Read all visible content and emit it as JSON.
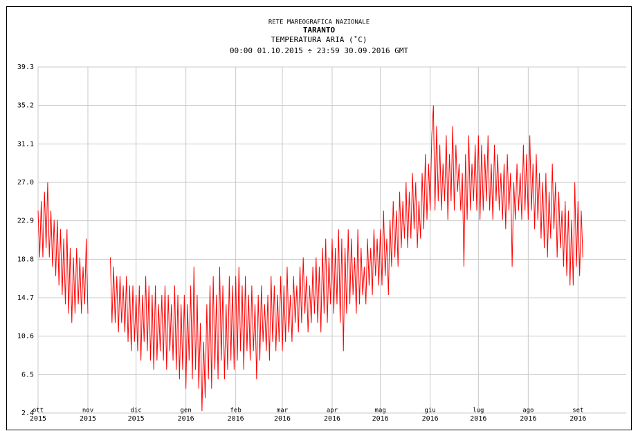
{
  "chart_data": {
    "type": "line",
    "header": "RETE MAREOGRAFICA NAZIONALE",
    "title": "TARANTO",
    "subtitle": "TEMPERATURA ARIA (˚C)",
    "period": "00:00 01.10.2015 ÷ 23:59 30.09.2016 GMT",
    "xlim": [
      0,
      366
    ],
    "xticks": [
      {
        "value": 0,
        "label": "ott",
        "year": "2015"
      },
      {
        "value": 31,
        "label": "nov",
        "year": "2015"
      },
      {
        "value": 61,
        "label": "dic",
        "year": "2015"
      },
      {
        "value": 92,
        "label": "gen",
        "year": "2016"
      },
      {
        "value": 123,
        "label": "feb",
        "year": "2016"
      },
      {
        "value": 152,
        "label": "mar",
        "year": "2016"
      },
      {
        "value": 183,
        "label": "apr",
        "year": "2016"
      },
      {
        "value": 213,
        "label": "mag",
        "year": "2016"
      },
      {
        "value": 244,
        "label": "giu",
        "year": "2016"
      },
      {
        "value": 274,
        "label": "lug",
        "year": "2016"
      },
      {
        "value": 305,
        "label": "ago",
        "year": "2016"
      },
      {
        "value": 336,
        "label": "set",
        "year": "2016"
      }
    ],
    "ylim": [
      2.4,
      39.3
    ],
    "yticks": [
      2.4,
      6.5,
      10.6,
      14.7,
      18.8,
      22.9,
      {
        "value": 27,
        "label": "27.0"
      },
      31.1,
      35.2,
      39.3
    ],
    "grid": true,
    "x": [
      0,
      1,
      2,
      3,
      4,
      5,
      6,
      7,
      8,
      9,
      10,
      11,
      12,
      13,
      14,
      15,
      16,
      17,
      18,
      19,
      20,
      21,
      22,
      23,
      24,
      25,
      26,
      27,
      28,
      29,
      30,
      31,
      32,
      33,
      34,
      35,
      36,
      37,
      38,
      39,
      40,
      41,
      42,
      43,
      44,
      45,
      46,
      47,
      48,
      49,
      50,
      51,
      52,
      53,
      54,
      55,
      56,
      57,
      58,
      59,
      60,
      61,
      62,
      63,
      64,
      65,
      66,
      67,
      68,
      69,
      70,
      71,
      72,
      73,
      74,
      75,
      76,
      77,
      78,
      79,
      80,
      81,
      82,
      83,
      84,
      85,
      86,
      87,
      88,
      89,
      90,
      91,
      92,
      93,
      94,
      95,
      96,
      97,
      98,
      99,
      100,
      101,
      102,
      103,
      104,
      105,
      106,
      107,
      108,
      109,
      110,
      111,
      112,
      113,
      114,
      115,
      116,
      117,
      118,
      119,
      120,
      121,
      122,
      123,
      124,
      125,
      126,
      127,
      128,
      129,
      130,
      131,
      132,
      133,
      134,
      135,
      136,
      137,
      138,
      139,
      140,
      141,
      142,
      143,
      144,
      145,
      146,
      147,
      148,
      149,
      150,
      151,
      152,
      153,
      154,
      155,
      156,
      157,
      158,
      159,
      160,
      161,
      162,
      163,
      164,
      165,
      166,
      167,
      168,
      169,
      170,
      171,
      172,
      173,
      174,
      175,
      176,
      177,
      178,
      179,
      180,
      181,
      182,
      183,
      184,
      185,
      186,
      187,
      188,
      189,
      190,
      191,
      192,
      193,
      194,
      195,
      196,
      197,
      198,
      199,
      200,
      201,
      202,
      203,
      204,
      205,
      206,
      207,
      208,
      209,
      210,
      211,
      212,
      213,
      214,
      215,
      216,
      217,
      218,
      219,
      220,
      221,
      222,
      223,
      224,
      225,
      226,
      227,
      228,
      229,
      230,
      231,
      232,
      233,
      234,
      235,
      236,
      237,
      238,
      239,
      240,
      241,
      242,
      243,
      244,
      245,
      246,
      247,
      248,
      249,
      250,
      251,
      252,
      253,
      254,
      255,
      256,
      257,
      258,
      259,
      260,
      261,
      262,
      263,
      264,
      265,
      266,
      267,
      268,
      269,
      270,
      271,
      272,
      273,
      274,
      275,
      276,
      277,
      278,
      279,
      280,
      281,
      282,
      283,
      284,
      285,
      286,
      287,
      288,
      289,
      290,
      291,
      292,
      293,
      294,
      295,
      296,
      297,
      298,
      299,
      300,
      301,
      302,
      303,
      304,
      305,
      306,
      307,
      308,
      309,
      310,
      311,
      312,
      313,
      314,
      315,
      316,
      317,
      318,
      319,
      320,
      321,
      322,
      323,
      324,
      325,
      326,
      327,
      328,
      329,
      330,
      331,
      332,
      333,
      334,
      335,
      336,
      337,
      338,
      339
    ],
    "series": [
      {
        "color": "#ff0000",
        "values": [
          24,
          19,
          25,
          19,
          26,
          20,
          27,
          19,
          24,
          18,
          23,
          17,
          23,
          16,
          22,
          15,
          21,
          14,
          22,
          13,
          20,
          12,
          19,
          13,
          20,
          14,
          19,
          13,
          18,
          14,
          21,
          13,
          null,
          null,
          null,
          null,
          null,
          null,
          null,
          null,
          null,
          null,
          null,
          null,
          null,
          19,
          12,
          18,
          12,
          17,
          11,
          17,
          12,
          16,
          11,
          17,
          10,
          16,
          9,
          16,
          10,
          15,
          9,
          16,
          8,
          15,
          10,
          17,
          9,
          16,
          8,
          15,
          7,
          16,
          8,
          14,
          9,
          15,
          8,
          16,
          7,
          15,
          9,
          14,
          8,
          16,
          7,
          15,
          6,
          14,
          7,
          15,
          5,
          14,
          8,
          16,
          6,
          18,
          7,
          15,
          5,
          12,
          2.6,
          10,
          4,
          14,
          6,
          16,
          5,
          17,
          7,
          15,
          6,
          18,
          8,
          16,
          6,
          14,
          7,
          17,
          8,
          16,
          7,
          17,
          8,
          18,
          9,
          16,
          7,
          17,
          9,
          15,
          8,
          16,
          9,
          14,
          6,
          15,
          8,
          16,
          10,
          14,
          9,
          15,
          8,
          17,
          10,
          16,
          9,
          15,
          10,
          17,
          9,
          16,
          10,
          18,
          11,
          15,
          10,
          17,
          12,
          16,
          11,
          18,
          12,
          19,
          13,
          17,
          11,
          16,
          12,
          18,
          13,
          19,
          12,
          18,
          11,
          20,
          13,
          21,
          12,
          19,
          14,
          21,
          13,
          20,
          14,
          22,
          12,
          21,
          9,
          20,
          13,
          22,
          14,
          21,
          15,
          19,
          13,
          22,
          14,
          20,
          15,
          18,
          14,
          21,
          16,
          20,
          15,
          22,
          17,
          21,
          16,
          22,
          16,
          24,
          17,
          21,
          15,
          23,
          18,
          25,
          19,
          24,
          18,
          26,
          20,
          25,
          21,
          27,
          20,
          26,
          21,
          28,
          22,
          27,
          20,
          25,
          21,
          28,
          22,
          30,
          23,
          29,
          24,
          32,
          35.2,
          24,
          33,
          25,
          31,
          24,
          29,
          25,
          32,
          23,
          30,
          25,
          33,
          24,
          31,
          26,
          29,
          24,
          28,
          18,
          30,
          23,
          32,
          24,
          29,
          25,
          31,
          24,
          32,
          23,
          31,
          24,
          30,
          25,
          32,
          24,
          29,
          23,
          31,
          25,
          30,
          24,
          28,
          23,
          29,
          22,
          30,
          24,
          28,
          18,
          27,
          23,
          29,
          24,
          28,
          23,
          31,
          24,
          30,
          23,
          32,
          24,
          29,
          22,
          30,
          23,
          28,
          21,
          27,
          20,
          28,
          19,
          26,
          21,
          29,
          22,
          27,
          19,
          26,
          20,
          24,
          18,
          25,
          17,
          24,
          16,
          23,
          16,
          27,
          18,
          25,
          17,
          24,
          19
        ]
      }
    ]
  }
}
